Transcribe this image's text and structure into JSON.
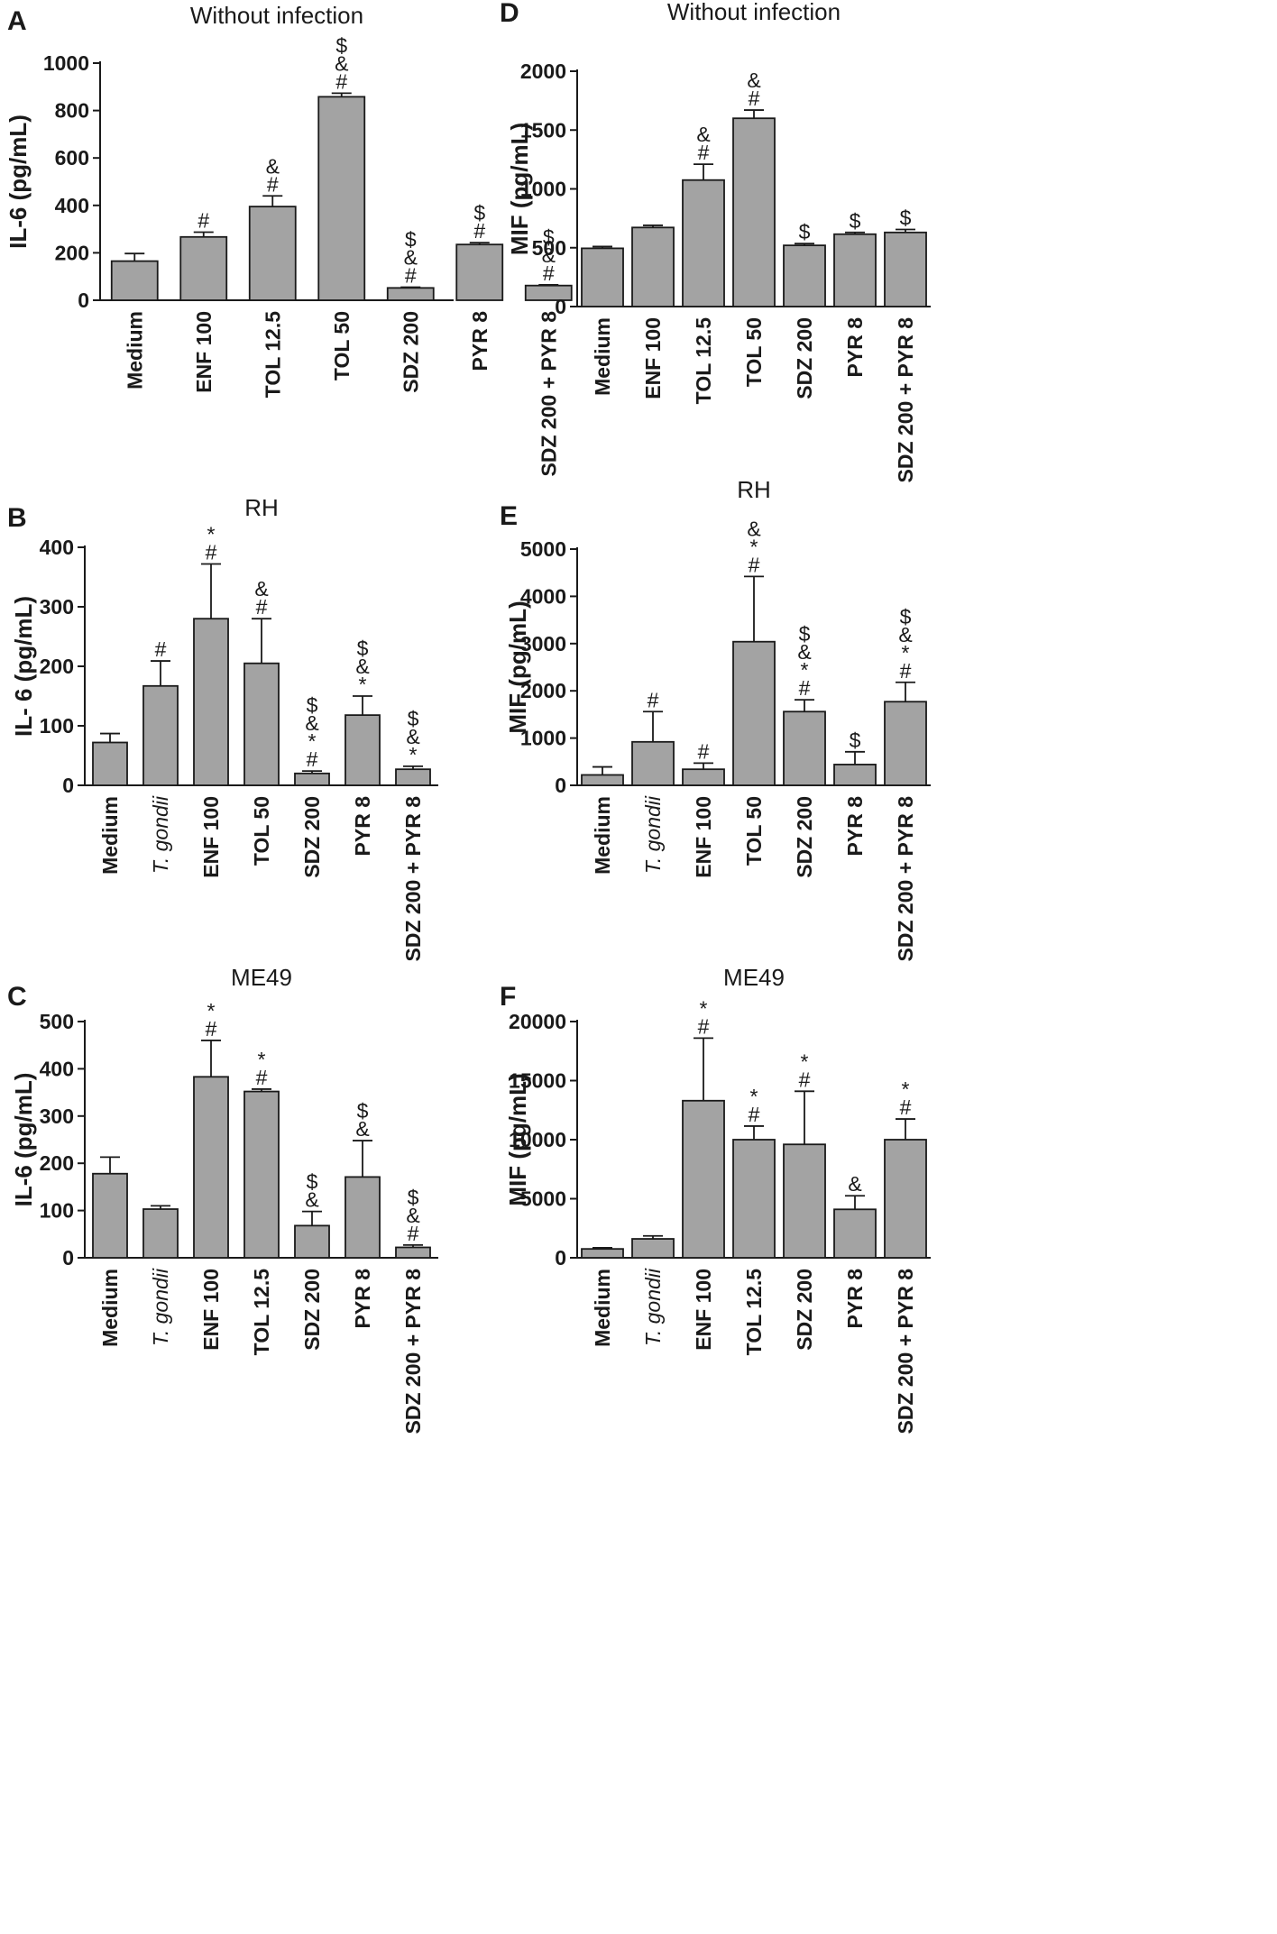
{
  "colors": {
    "bar": "#a3a3a3",
    "stroke": "#1a1a1a",
    "background": "#ffffff"
  },
  "chart_data": [
    {
      "panel": "A",
      "type": "bar",
      "title": "Without infection",
      "ylabel": "IL-6 (pg/mL)",
      "ylim": [
        0,
        1000
      ],
      "yticks": [
        0,
        200,
        400,
        600,
        800,
        1000
      ],
      "ytick_labels": [
        "0",
        "200",
        "400",
        "600",
        "800",
        "1000"
      ],
      "categories": [
        "Medium",
        "ENF 100",
        "TOL 12.5",
        "TOL 50",
        "SDZ 200",
        "PYR 8",
        "SDZ 200 + PYR 8"
      ],
      "italic": [
        false,
        false,
        false,
        false,
        false,
        false,
        false
      ],
      "values": [
        165,
        267,
        395,
        858,
        52,
        235,
        62
      ],
      "errors": [
        32,
        20,
        45,
        15,
        3,
        8,
        3
      ],
      "annotations": [
        [],
        [
          "#"
        ],
        [
          "#",
          "&"
        ],
        [
          "#",
          "&",
          "$"
        ],
        [
          "#",
          "&",
          "$"
        ],
        [
          "#",
          "$"
        ],
        [
          "#",
          "&",
          "$"
        ]
      ]
    },
    {
      "panel": "D",
      "type": "bar",
      "title": "Without infection",
      "ylabel": "MIF (pg/mL)",
      "ylim": [
        0,
        2000
      ],
      "yticks": [
        0,
        500,
        1000,
        1500,
        2000
      ],
      "ytick_labels": [
        "0",
        "500",
        "1000",
        "1500",
        "2000"
      ],
      "categories": [
        "Medium",
        "ENF 100",
        "TOL 12.5",
        "TOL 50",
        "SDZ 200",
        "PYR 8",
        "SDZ 200 + PYR 8"
      ],
      "italic": [
        false,
        false,
        false,
        false,
        false,
        false,
        false
      ],
      "values": [
        495,
        672,
        1075,
        1600,
        520,
        615,
        630
      ],
      "errors": [
        15,
        18,
        135,
        70,
        15,
        15,
        25
      ],
      "annotations": [
        [],
        [],
        [
          "#",
          "&"
        ],
        [
          "#",
          "&"
        ],
        [
          "$"
        ],
        [
          "$"
        ],
        [
          "$"
        ]
      ]
    },
    {
      "panel": "B",
      "type": "bar",
      "title": "RH",
      "ylabel": "IL- 6 (pg/mL)",
      "ylim": [
        0,
        400
      ],
      "yticks": [
        0,
        100,
        200,
        300,
        400
      ],
      "ytick_labels": [
        "0",
        "100",
        "200",
        "300",
        "400"
      ],
      "categories": [
        "Medium",
        "T. gondii",
        "ENF 100",
        "TOL 50",
        "SDZ 200",
        "PYR 8",
        "SDZ 200 + PYR 8"
      ],
      "italic": [
        false,
        true,
        false,
        false,
        false,
        false,
        false
      ],
      "values": [
        72,
        167,
        280,
        205,
        20,
        118,
        27
      ],
      "errors": [
        15,
        42,
        92,
        75,
        4,
        32,
        5
      ],
      "annotations": [
        [],
        [
          "#"
        ],
        [
          "#",
          "*"
        ],
        [
          "#",
          "&"
        ],
        [
          "#",
          "*",
          "&",
          "$"
        ],
        [
          "*",
          "&",
          "$"
        ],
        [
          "*",
          "&",
          "$"
        ]
      ]
    },
    {
      "panel": "E",
      "type": "bar",
      "title": "RH",
      "ylabel": "MIF (pg/mL)",
      "ylim": [
        0,
        5000
      ],
      "yticks": [
        0,
        1000,
        2000,
        3000,
        4000,
        5000
      ],
      "ytick_labels": [
        "0",
        "1000",
        "2000",
        "3000",
        "4000",
        "5000"
      ],
      "categories": [
        "Medium",
        "T. gondii",
        "ENF 100",
        "TOL 50",
        "SDZ 200",
        "PYR 8",
        "SDZ 200 + PYR 8"
      ],
      "italic": [
        false,
        true,
        false,
        false,
        false,
        false,
        false
      ],
      "values": [
        220,
        920,
        340,
        3040,
        1560,
        440,
        1770
      ],
      "errors": [
        170,
        640,
        130,
        1380,
        250,
        270,
        410
      ],
      "annotations": [
        [],
        [
          "#"
        ],
        [
          "#"
        ],
        [
          "#",
          "*",
          "&"
        ],
        [
          "#",
          "*",
          "&",
          "$"
        ],
        [
          "$"
        ],
        [
          "#",
          "*",
          "&",
          "$"
        ]
      ]
    },
    {
      "panel": "C",
      "type": "bar",
      "title": "ME49",
      "ylabel": "IL-6 (pg/mL)",
      "ylim": [
        0,
        500
      ],
      "yticks": [
        0,
        100,
        200,
        300,
        400,
        500
      ],
      "ytick_labels": [
        "0",
        "100",
        "200",
        "300",
        "400",
        "500"
      ],
      "categories": [
        "Medium",
        "T. gondii",
        "ENF 100",
        "TOL 12.5",
        "SDZ 200",
        "PYR 8",
        "SDZ 200 + PYR 8"
      ],
      "italic": [
        false,
        true,
        false,
        false,
        false,
        false,
        false
      ],
      "values": [
        178,
        103,
        383,
        352,
        68,
        171,
        22
      ],
      "errors": [
        35,
        7,
        77,
        5,
        30,
        77,
        5
      ],
      "annotations": [
        [],
        [],
        [
          "#",
          "*"
        ],
        [
          "#",
          "*"
        ],
        [
          "&",
          "$"
        ],
        [
          "&",
          "$"
        ],
        [
          "#",
          "&",
          "$"
        ]
      ]
    },
    {
      "panel": "F",
      "type": "bar",
      "title": "ME49",
      "ylabel": "MIF (pg/mL)",
      "ylim": [
        0,
        20000
      ],
      "yticks": [
        0,
        5000,
        10000,
        15000,
        20000
      ],
      "ytick_labels": [
        "0",
        "5000",
        "10000",
        "15000",
        "20000"
      ],
      "categories": [
        "Medium",
        "T. gondii",
        "ENF 100",
        "TOL 12.5",
        "SDZ 200",
        "PYR 8",
        "SDZ 200 + PYR 8"
      ],
      "italic": [
        false,
        true,
        false,
        false,
        false,
        false,
        false
      ],
      "values": [
        750,
        1600,
        13300,
        10000,
        9600,
        4100,
        10000
      ],
      "errors": [
        100,
        250,
        5300,
        1150,
        4500,
        1150,
        1750
      ],
      "annotations": [
        [],
        [],
        [
          "#",
          "*"
        ],
        [
          "#",
          "*"
        ],
        [
          "#",
          "*"
        ],
        [
          "&"
        ],
        [
          "#",
          "*"
        ]
      ]
    }
  ]
}
